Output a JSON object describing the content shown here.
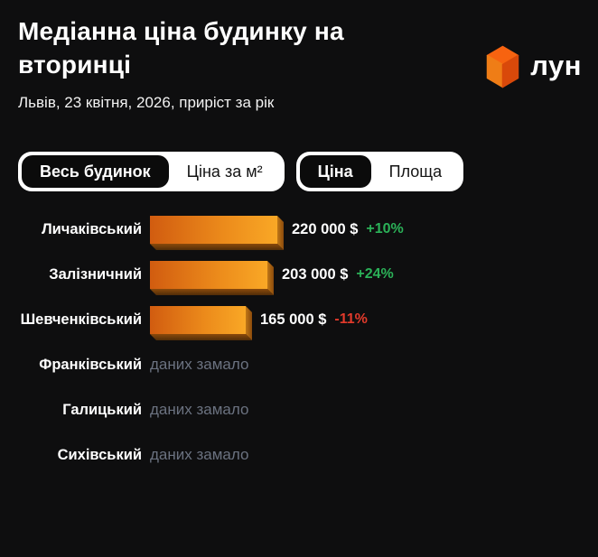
{
  "header": {
    "title": "Медіанна ціна будинку на вторинці",
    "subtitle": "Львів, 23 квітня, 2026, приріст за рік",
    "logo_text": "лун"
  },
  "toggles": {
    "building_metric": {
      "options": [
        {
          "label": "Весь будинок",
          "active": true
        },
        {
          "label": "Ціна за м²",
          "active": false
        }
      ]
    },
    "value_type": {
      "options": [
        {
          "label": "Ціна",
          "active": true
        },
        {
          "label": "Площа",
          "active": false
        }
      ]
    }
  },
  "chart_data": {
    "type": "bar",
    "orientation": "horizontal",
    "title": "Медіанна ціна будинку на вторинці",
    "subtitle": "Львів, 23 квітня, 2026, приріст за рік",
    "unit": "$",
    "categories": [
      "Личаківський",
      "Залізничний",
      "Шевченківський",
      "Франківський",
      "Галицький",
      "Сихівський"
    ],
    "values": [
      220000,
      203000,
      165000,
      null,
      null,
      null
    ],
    "value_labels": [
      "220 000 $",
      "203 000 $",
      "165 000 $",
      null,
      null,
      null
    ],
    "change_labels": [
      "+10%",
      "+24%",
      "-11%",
      null,
      null,
      null
    ],
    "no_data_label": "даних замало",
    "xlim": [
      0,
      220000
    ],
    "grid": false,
    "legend": false
  },
  "colors": {
    "background": "#0e0e0f",
    "text_primary": "#ffffff",
    "text_secondary": "#f2f2f2",
    "pill_bg": "#ffffff",
    "pill_active_bg": "#0b0b0b",
    "bar_start": "#d15c10",
    "bar_mid": "#ec8b1b",
    "bar_end": "#f9a826",
    "bar_side": "#c07716",
    "bar_bottom_hi": "#8a4a0c",
    "bar_bottom_lo": "#512d08",
    "positive": "#2bb158",
    "negative": "#e23a2b",
    "nodata_text": "#6b7280",
    "cube_top": "#f76310",
    "cube_left": "#ef7d16",
    "cube_right": "#d9490a"
  }
}
